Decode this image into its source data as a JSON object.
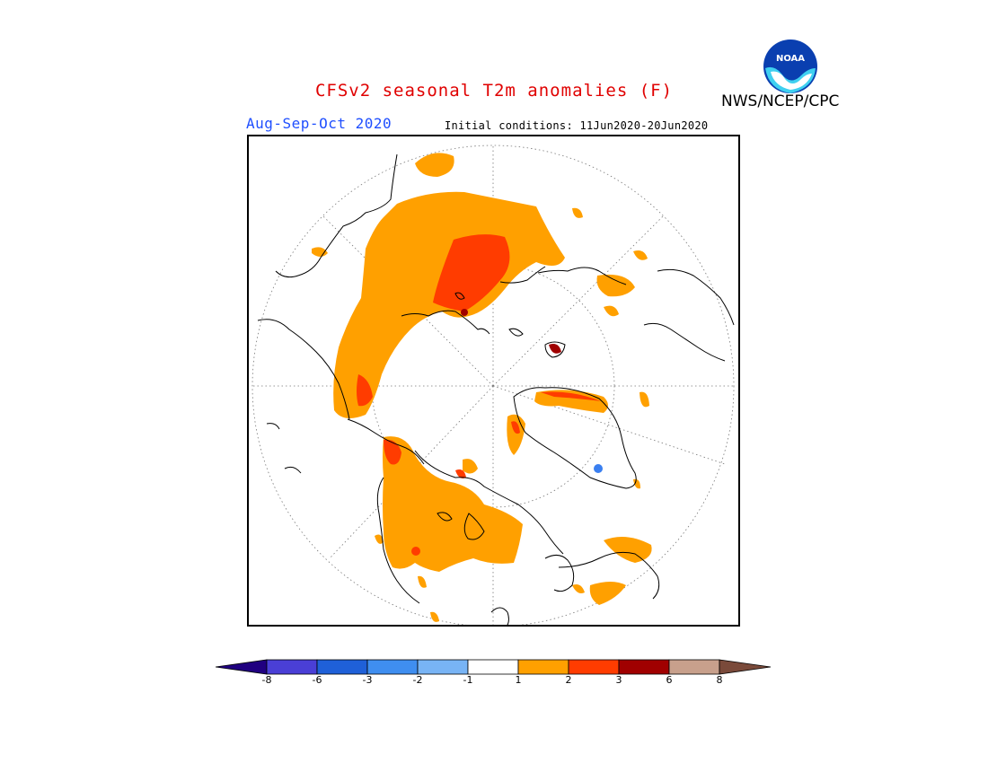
{
  "title": "CFSv2 seasonal T2m anomalies (F)",
  "season": "Aug-Sep-Oct 2020",
  "initial_conditions": "Initial conditions: 11Jun2020-20Jun2020",
  "agency": "NWS/NCEP/CPC",
  "logo_text": "NOAA",
  "colors": {
    "title": "#e00000",
    "season": "#1f4fff",
    "anom_1_2": "#ffa000",
    "anom_2_3": "#ff3c00",
    "anom_3_6": "#a00000",
    "anom_neg": "#3a7ff0"
  },
  "legend": {
    "labels": [
      "-8",
      "-6",
      "-3",
      "-2",
      "-1",
      "1",
      "2",
      "3",
      "6",
      "8"
    ],
    "colors": [
      "#200080",
      "#4a3fd6",
      "#1f60d8",
      "#3f8ef0",
      "#78b4f5",
      "#ffffff",
      "#ffa000",
      "#ff3c00",
      "#a00000",
      "#c8a08c",
      "#7a4a3a"
    ]
  }
}
